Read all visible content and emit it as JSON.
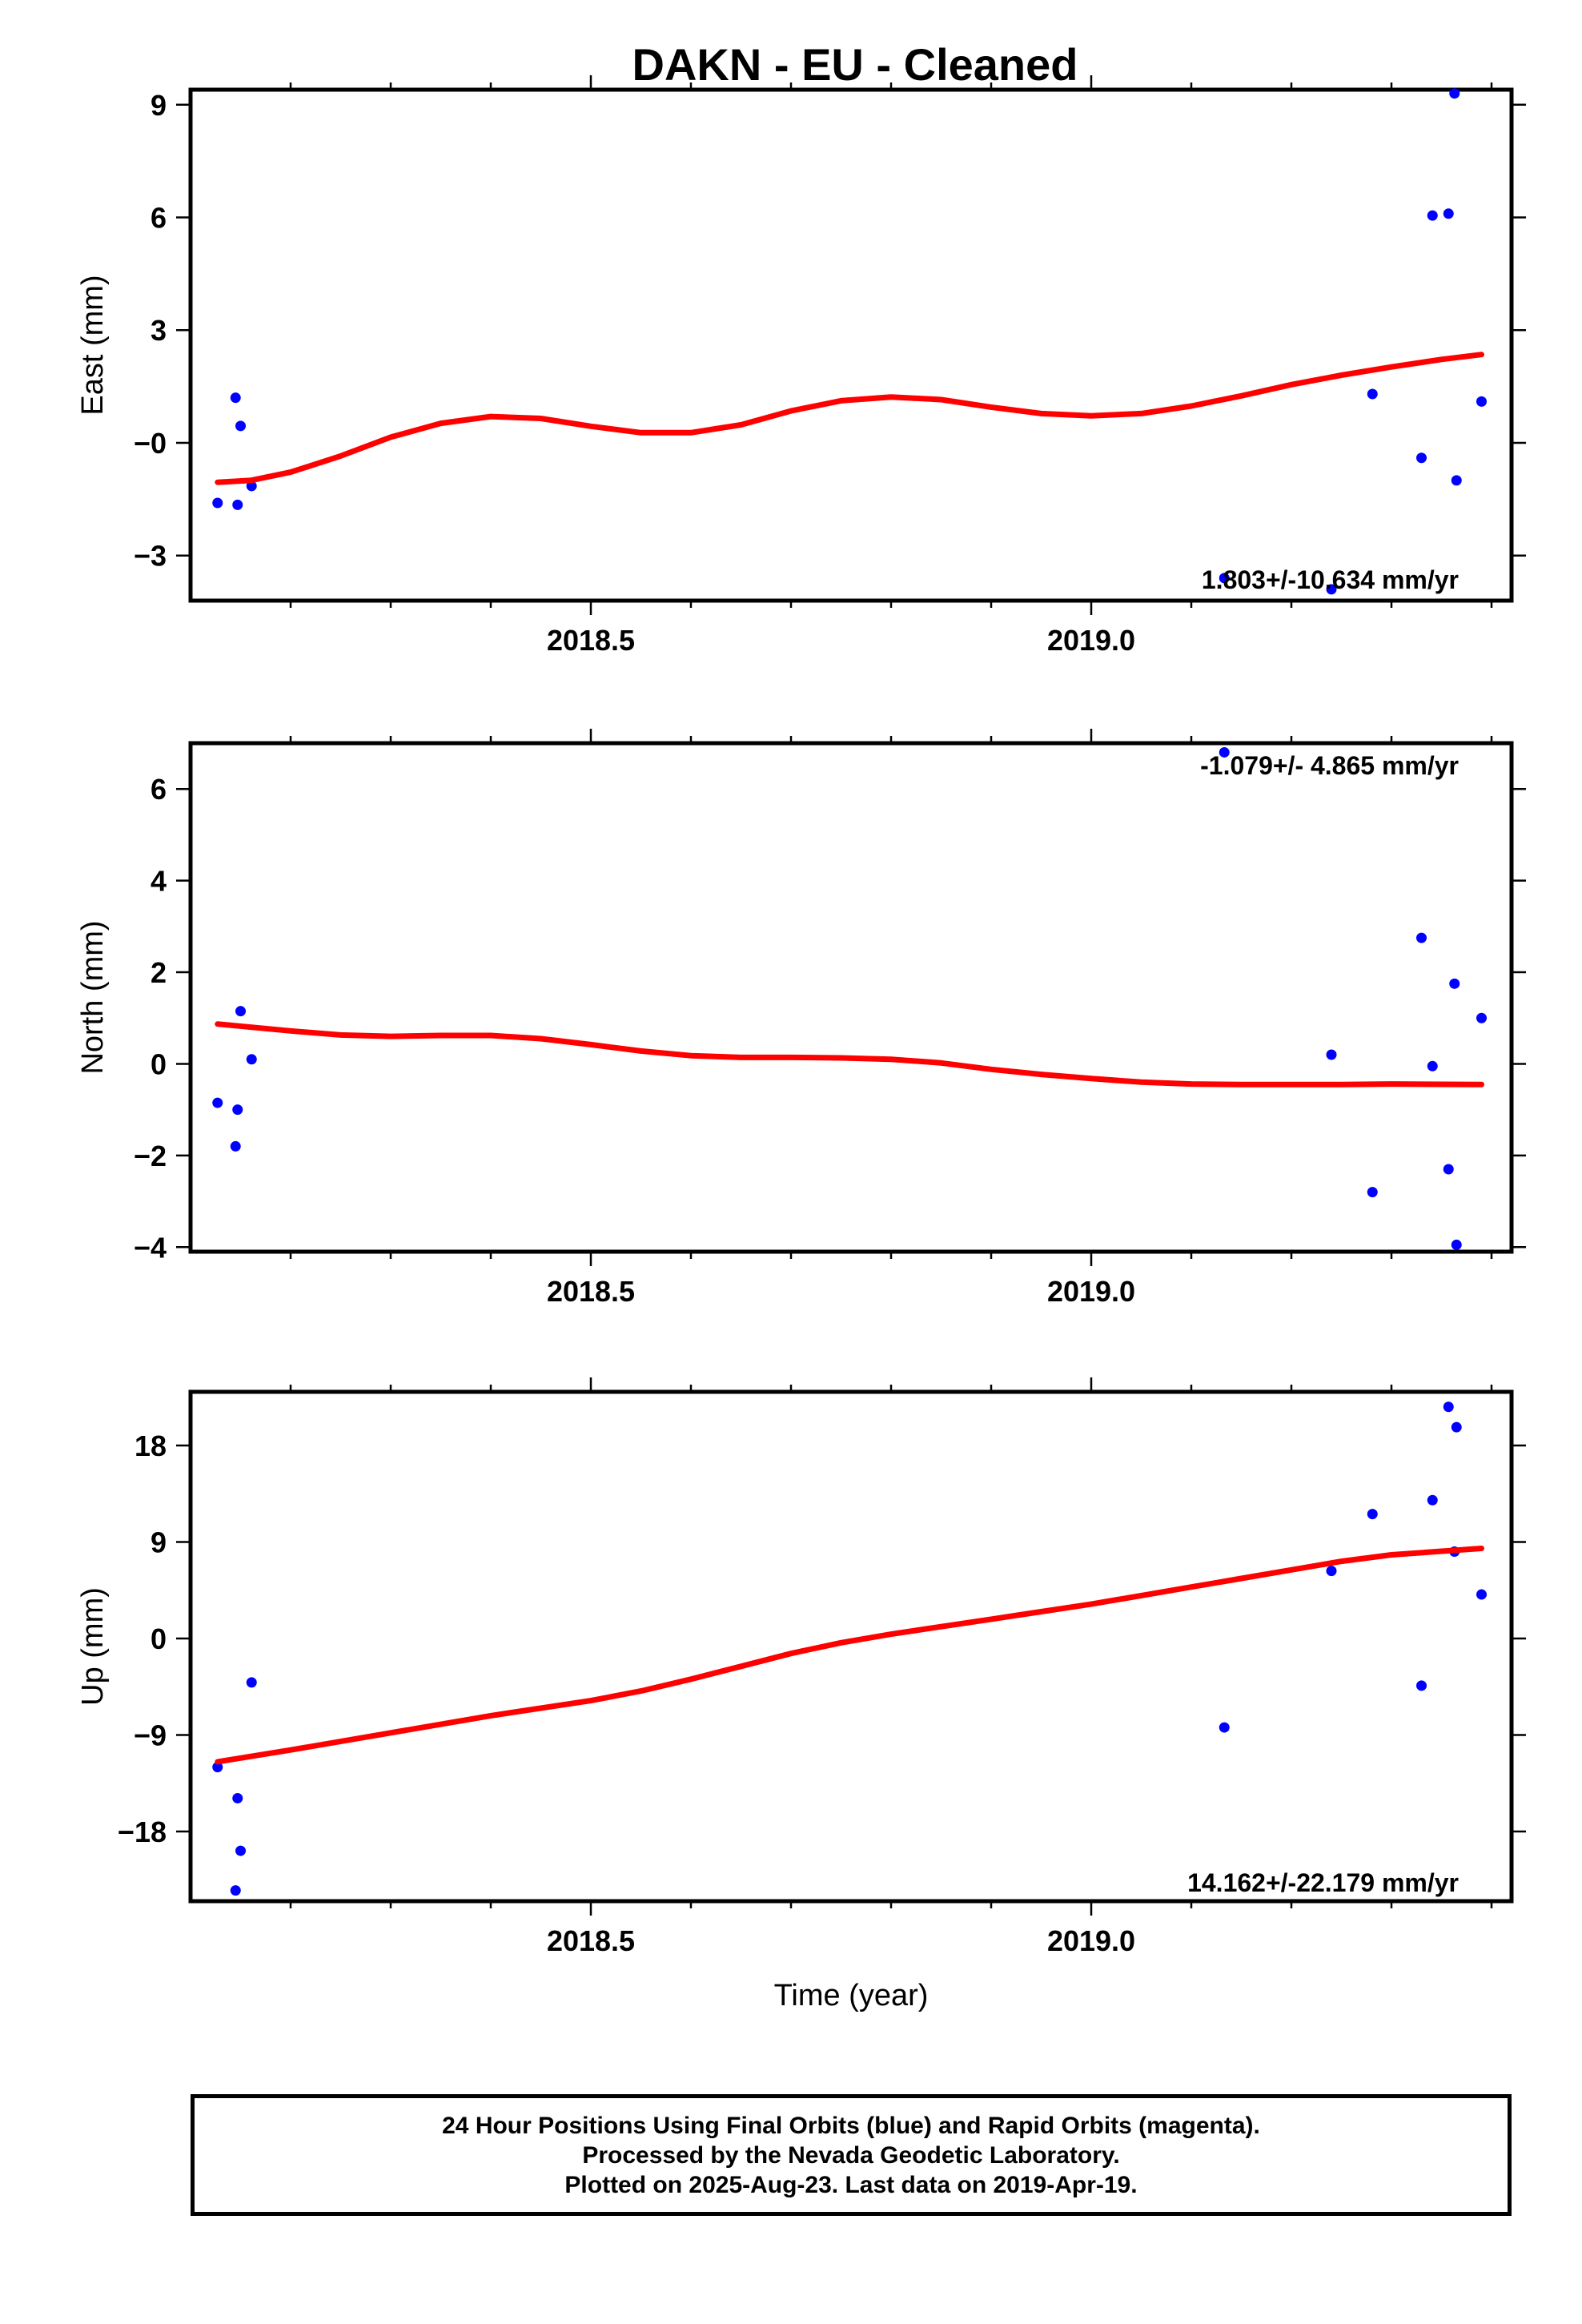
{
  "title": "DAKN  - EU - Cleaned",
  "colors": {
    "points": "#0000ff",
    "fit": "#ff0000",
    "frame": "#000000"
  },
  "footer": {
    "line1": "24 Hour Positions Using Final Orbits (blue) and Rapid Orbits (magenta).",
    "line2": "Processed by the Nevada Geodetic Laboratory.",
    "line3": "Plotted on 2025-Aug-23. Last data on 2019-Apr-19."
  },
  "chart_data": [
    {
      "type": "scatter",
      "name": "east",
      "ylabel": "East (mm)",
      "xlabel": "",
      "xlim": [
        2018.1,
        2019.42
      ],
      "ylim": [
        -4.2,
        9.4
      ],
      "x_ticks": [
        2018.5,
        2019.0
      ],
      "x_tick_labels": [
        "2018.5",
        "2019.0"
      ],
      "x_minor_ticks": [
        2018.2,
        2018.3,
        2018.4,
        2018.6,
        2018.7,
        2018.8,
        2018.9,
        2019.1,
        2019.2,
        2019.3,
        2019.4
      ],
      "y_ticks": [
        -3,
        0,
        3,
        6,
        9
      ],
      "y_tick_labels": [
        "−3",
        "−0",
        "3",
        "6",
        "9"
      ],
      "rate_label": "1.803+/-10.634 mm/yr",
      "points": [
        [
          2018.127,
          -1.6
        ],
        [
          2018.145,
          1.2
        ],
        [
          2018.147,
          -1.65
        ],
        [
          2018.15,
          0.45
        ],
        [
          2018.161,
          -1.15
        ],
        [
          2019.133,
          -3.6
        ],
        [
          2019.24,
          -3.9
        ],
        [
          2019.281,
          1.3
        ],
        [
          2019.33,
          -0.4
        ],
        [
          2019.341,
          6.05
        ],
        [
          2019.357,
          6.1
        ],
        [
          2019.363,
          9.3
        ],
        [
          2019.365,
          -1.0
        ],
        [
          2019.39,
          1.1
        ]
      ],
      "fit": [
        [
          2018.127,
          -1.05
        ],
        [
          2018.16,
          -1.0
        ],
        [
          2018.2,
          -0.78
        ],
        [
          2018.25,
          -0.35
        ],
        [
          2018.3,
          0.15
        ],
        [
          2018.35,
          0.52
        ],
        [
          2018.4,
          0.7
        ],
        [
          2018.45,
          0.65
        ],
        [
          2018.5,
          0.44
        ],
        [
          2018.55,
          0.27
        ],
        [
          2018.6,
          0.27
        ],
        [
          2018.65,
          0.48
        ],
        [
          2018.7,
          0.85
        ],
        [
          2018.75,
          1.12
        ],
        [
          2018.8,
          1.22
        ],
        [
          2018.85,
          1.15
        ],
        [
          2018.9,
          0.95
        ],
        [
          2018.95,
          0.78
        ],
        [
          2019.0,
          0.72
        ],
        [
          2019.05,
          0.78
        ],
        [
          2019.1,
          0.98
        ],
        [
          2019.15,
          1.25
        ],
        [
          2019.2,
          1.55
        ],
        [
          2019.25,
          1.8
        ],
        [
          2019.3,
          2.02
        ],
        [
          2019.35,
          2.22
        ],
        [
          2019.39,
          2.35
        ]
      ]
    },
    {
      "type": "scatter",
      "name": "north",
      "ylabel": "North (mm)",
      "xlabel": "",
      "xlim": [
        2018.1,
        2019.42
      ],
      "ylim": [
        -4.1,
        7.0
      ],
      "x_ticks": [
        2018.5,
        2019.0
      ],
      "x_tick_labels": [
        "2018.5",
        "2019.0"
      ],
      "x_minor_ticks": [
        2018.2,
        2018.3,
        2018.4,
        2018.6,
        2018.7,
        2018.8,
        2018.9,
        2019.1,
        2019.2,
        2019.3,
        2019.4
      ],
      "y_ticks": [
        -4,
        -2,
        0,
        2,
        4,
        6
      ],
      "y_tick_labels": [
        "−4",
        "−2",
        "0",
        "2",
        "4",
        "6"
      ],
      "rate_label": "-1.079+/- 4.865 mm/yr",
      "points": [
        [
          2018.127,
          -0.85
        ],
        [
          2018.145,
          -1.8
        ],
        [
          2018.147,
          -1.0
        ],
        [
          2018.15,
          1.15
        ],
        [
          2018.161,
          0.1
        ],
        [
          2019.133,
          6.8
        ],
        [
          2019.24,
          0.2
        ],
        [
          2019.281,
          -2.8
        ],
        [
          2019.33,
          2.75
        ],
        [
          2019.341,
          -0.05
        ],
        [
          2019.357,
          -2.3
        ],
        [
          2019.363,
          1.75
        ],
        [
          2019.365,
          -3.95
        ],
        [
          2019.39,
          1.0
        ]
      ],
      "fit": [
        [
          2018.127,
          0.87
        ],
        [
          2018.2,
          0.72
        ],
        [
          2018.25,
          0.63
        ],
        [
          2018.3,
          0.6
        ],
        [
          2018.35,
          0.62
        ],
        [
          2018.4,
          0.62
        ],
        [
          2018.45,
          0.55
        ],
        [
          2018.5,
          0.42
        ],
        [
          2018.55,
          0.28
        ],
        [
          2018.6,
          0.18
        ],
        [
          2018.65,
          0.14
        ],
        [
          2018.7,
          0.14
        ],
        [
          2018.75,
          0.13
        ],
        [
          2018.8,
          0.1
        ],
        [
          2018.85,
          0.02
        ],
        [
          2018.9,
          -0.12
        ],
        [
          2018.95,
          -0.23
        ],
        [
          2019.0,
          -0.32
        ],
        [
          2019.05,
          -0.4
        ],
        [
          2019.1,
          -0.44
        ],
        [
          2019.15,
          -0.45
        ],
        [
          2019.2,
          -0.45
        ],
        [
          2019.25,
          -0.45
        ],
        [
          2019.3,
          -0.44
        ],
        [
          2019.39,
          -0.45
        ]
      ]
    },
    {
      "type": "scatter",
      "name": "up",
      "ylabel": "Up (mm)",
      "xlabel": "Time (year)",
      "xlim": [
        2018.1,
        2019.42
      ],
      "ylim": [
        -24.5,
        23.0
      ],
      "x_ticks": [
        2018.5,
        2019.0
      ],
      "x_tick_labels": [
        "2018.5",
        "2019.0"
      ],
      "x_minor_ticks": [
        2018.2,
        2018.3,
        2018.4,
        2018.6,
        2018.7,
        2018.8,
        2018.9,
        2019.1,
        2019.2,
        2019.3,
        2019.4
      ],
      "y_ticks": [
        -18,
        -9,
        0,
        9,
        18
      ],
      "y_tick_labels": [
        "−18",
        "−9",
        "0",
        "9",
        "18"
      ],
      "rate_label": "14.162+/-22.179 mm/yr",
      "points": [
        [
          2018.127,
          -12.0
        ],
        [
          2018.145,
          -23.5
        ],
        [
          2018.147,
          -14.9
        ],
        [
          2018.15,
          -19.8
        ],
        [
          2018.161,
          -4.1
        ],
        [
          2019.133,
          -8.3
        ],
        [
          2019.24,
          6.3
        ],
        [
          2019.281,
          11.6
        ],
        [
          2019.33,
          -4.4
        ],
        [
          2019.341,
          12.9
        ],
        [
          2019.357,
          21.6
        ],
        [
          2019.363,
          8.1
        ],
        [
          2019.365,
          19.7
        ],
        [
          2019.39,
          4.1
        ]
      ],
      "fit": [
        [
          2018.127,
          -11.5
        ],
        [
          2018.2,
          -10.4
        ],
        [
          2018.3,
          -8.8
        ],
        [
          2018.4,
          -7.2
        ],
        [
          2018.5,
          -5.8
        ],
        [
          2018.55,
          -4.9
        ],
        [
          2018.6,
          -3.8
        ],
        [
          2018.65,
          -2.6
        ],
        [
          2018.7,
          -1.4
        ],
        [
          2018.75,
          -0.4
        ],
        [
          2018.8,
          0.4
        ],
        [
          2018.85,
          1.1
        ],
        [
          2018.9,
          1.8
        ],
        [
          2018.95,
          2.5
        ],
        [
          2019.0,
          3.2
        ],
        [
          2019.05,
          4.0
        ],
        [
          2019.1,
          4.8
        ],
        [
          2019.15,
          5.6
        ],
        [
          2019.2,
          6.4
        ],
        [
          2019.25,
          7.2
        ],
        [
          2019.3,
          7.8
        ],
        [
          2019.39,
          8.4
        ]
      ]
    }
  ]
}
